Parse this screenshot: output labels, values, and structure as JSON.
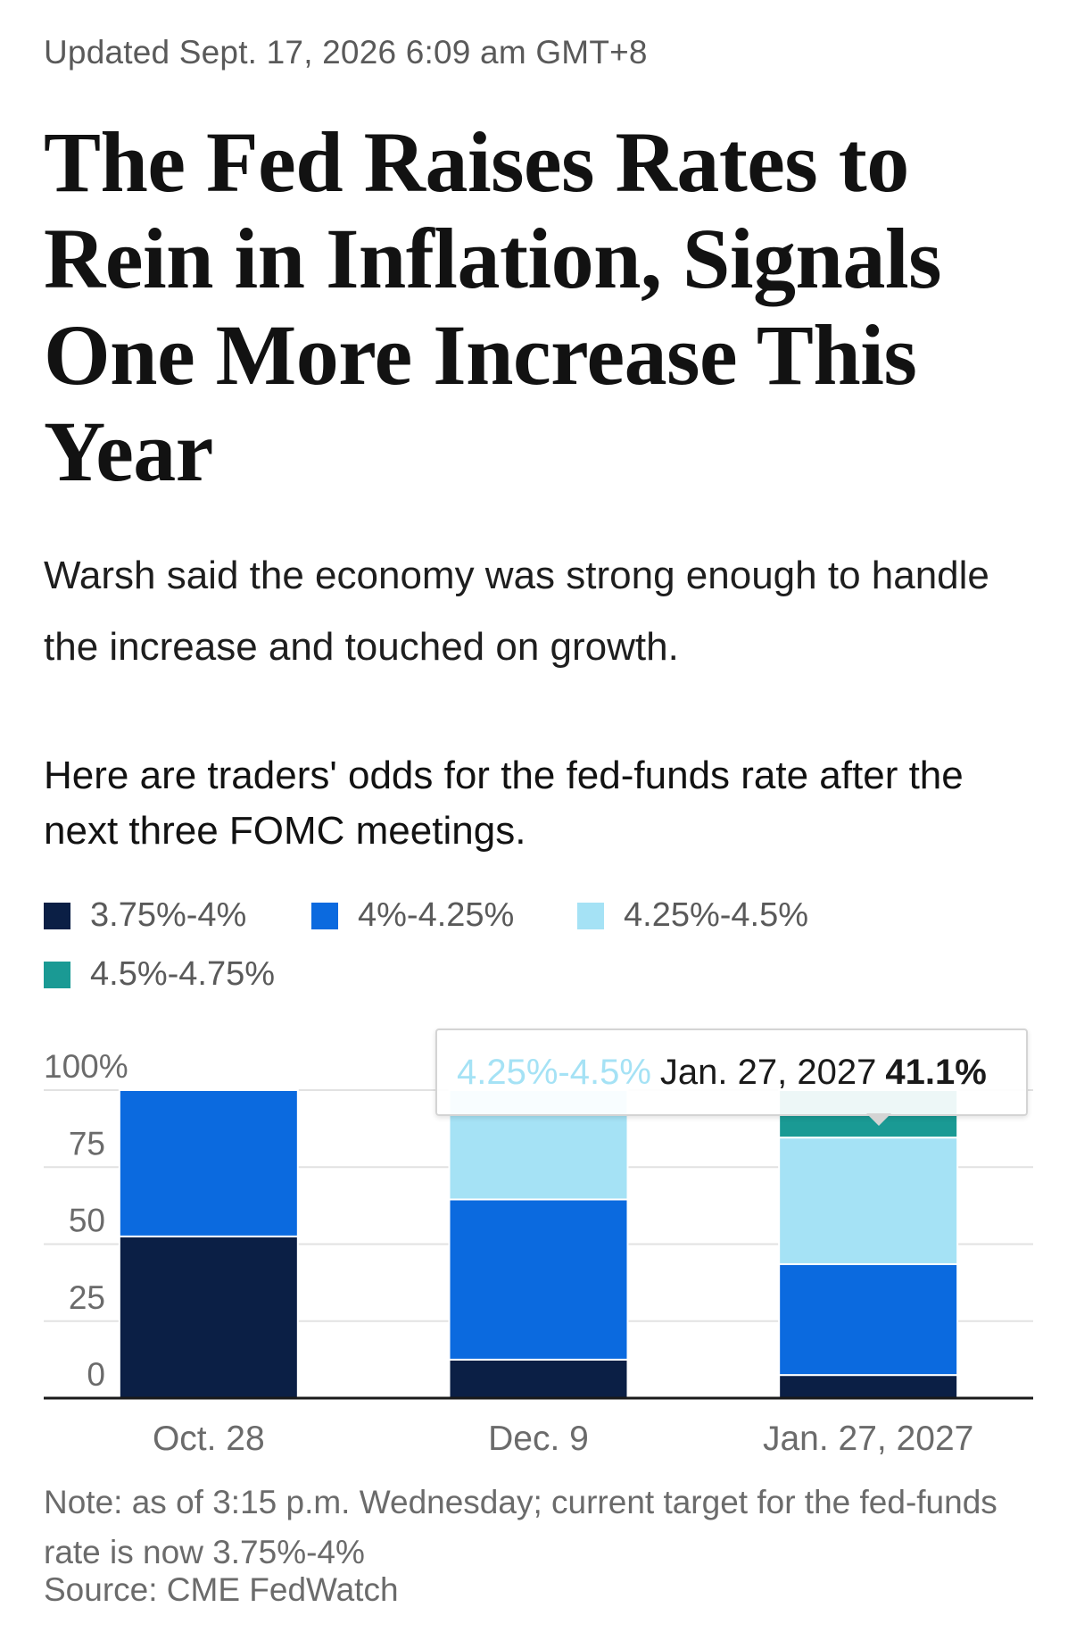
{
  "article": {
    "updated": "Updated Sept. 17, 2026 6:09 am GMT+8",
    "headline": "The Fed Raises Rates to Rein in Inflation, Signals One More Increase This Year",
    "dek": "Warsh said the economy was strong enough to handle the increase and touched on growth.",
    "chart_intro": "Here are traders' odds for the fed-funds rate after the next three FOMC meetings."
  },
  "chart_data": {
    "type": "bar",
    "stacked": true,
    "categories": [
      "Oct. 28",
      "Dec. 9",
      "Jan. 27, 2027"
    ],
    "series": [
      {
        "name": "3.75%-4%",
        "color": "#0b1f45",
        "values": [
          52.5,
          12.5,
          7.5
        ]
      },
      {
        "name": "4%-4.25%",
        "color": "#0b6adf",
        "values": [
          47.5,
          52,
          36
        ]
      },
      {
        "name": "4.25%-4.5%",
        "color": "#a5e2f5",
        "values": [
          0,
          35.5,
          41.1
        ]
      },
      {
        "name": "4.5%-4.75%",
        "color": "#1a9a94",
        "values": [
          0,
          0,
          15.4
        ]
      }
    ],
    "ylim": [
      0,
      100
    ],
    "yticks": [
      0,
      25,
      50,
      75,
      100
    ],
    "ytick_labels": [
      "0",
      "25",
      "50",
      "75",
      "100%"
    ],
    "grid": true,
    "legend": "top",
    "tooltip": {
      "series": "4.25%-4.5%",
      "category": "Jan. 27, 2027",
      "value": "41.1%"
    },
    "note": "Note: as of 3:15 p.m. Wednesday; current target for the fed-funds rate is now 3.75%-4%",
    "source": "Source: CME FedWatch"
  }
}
